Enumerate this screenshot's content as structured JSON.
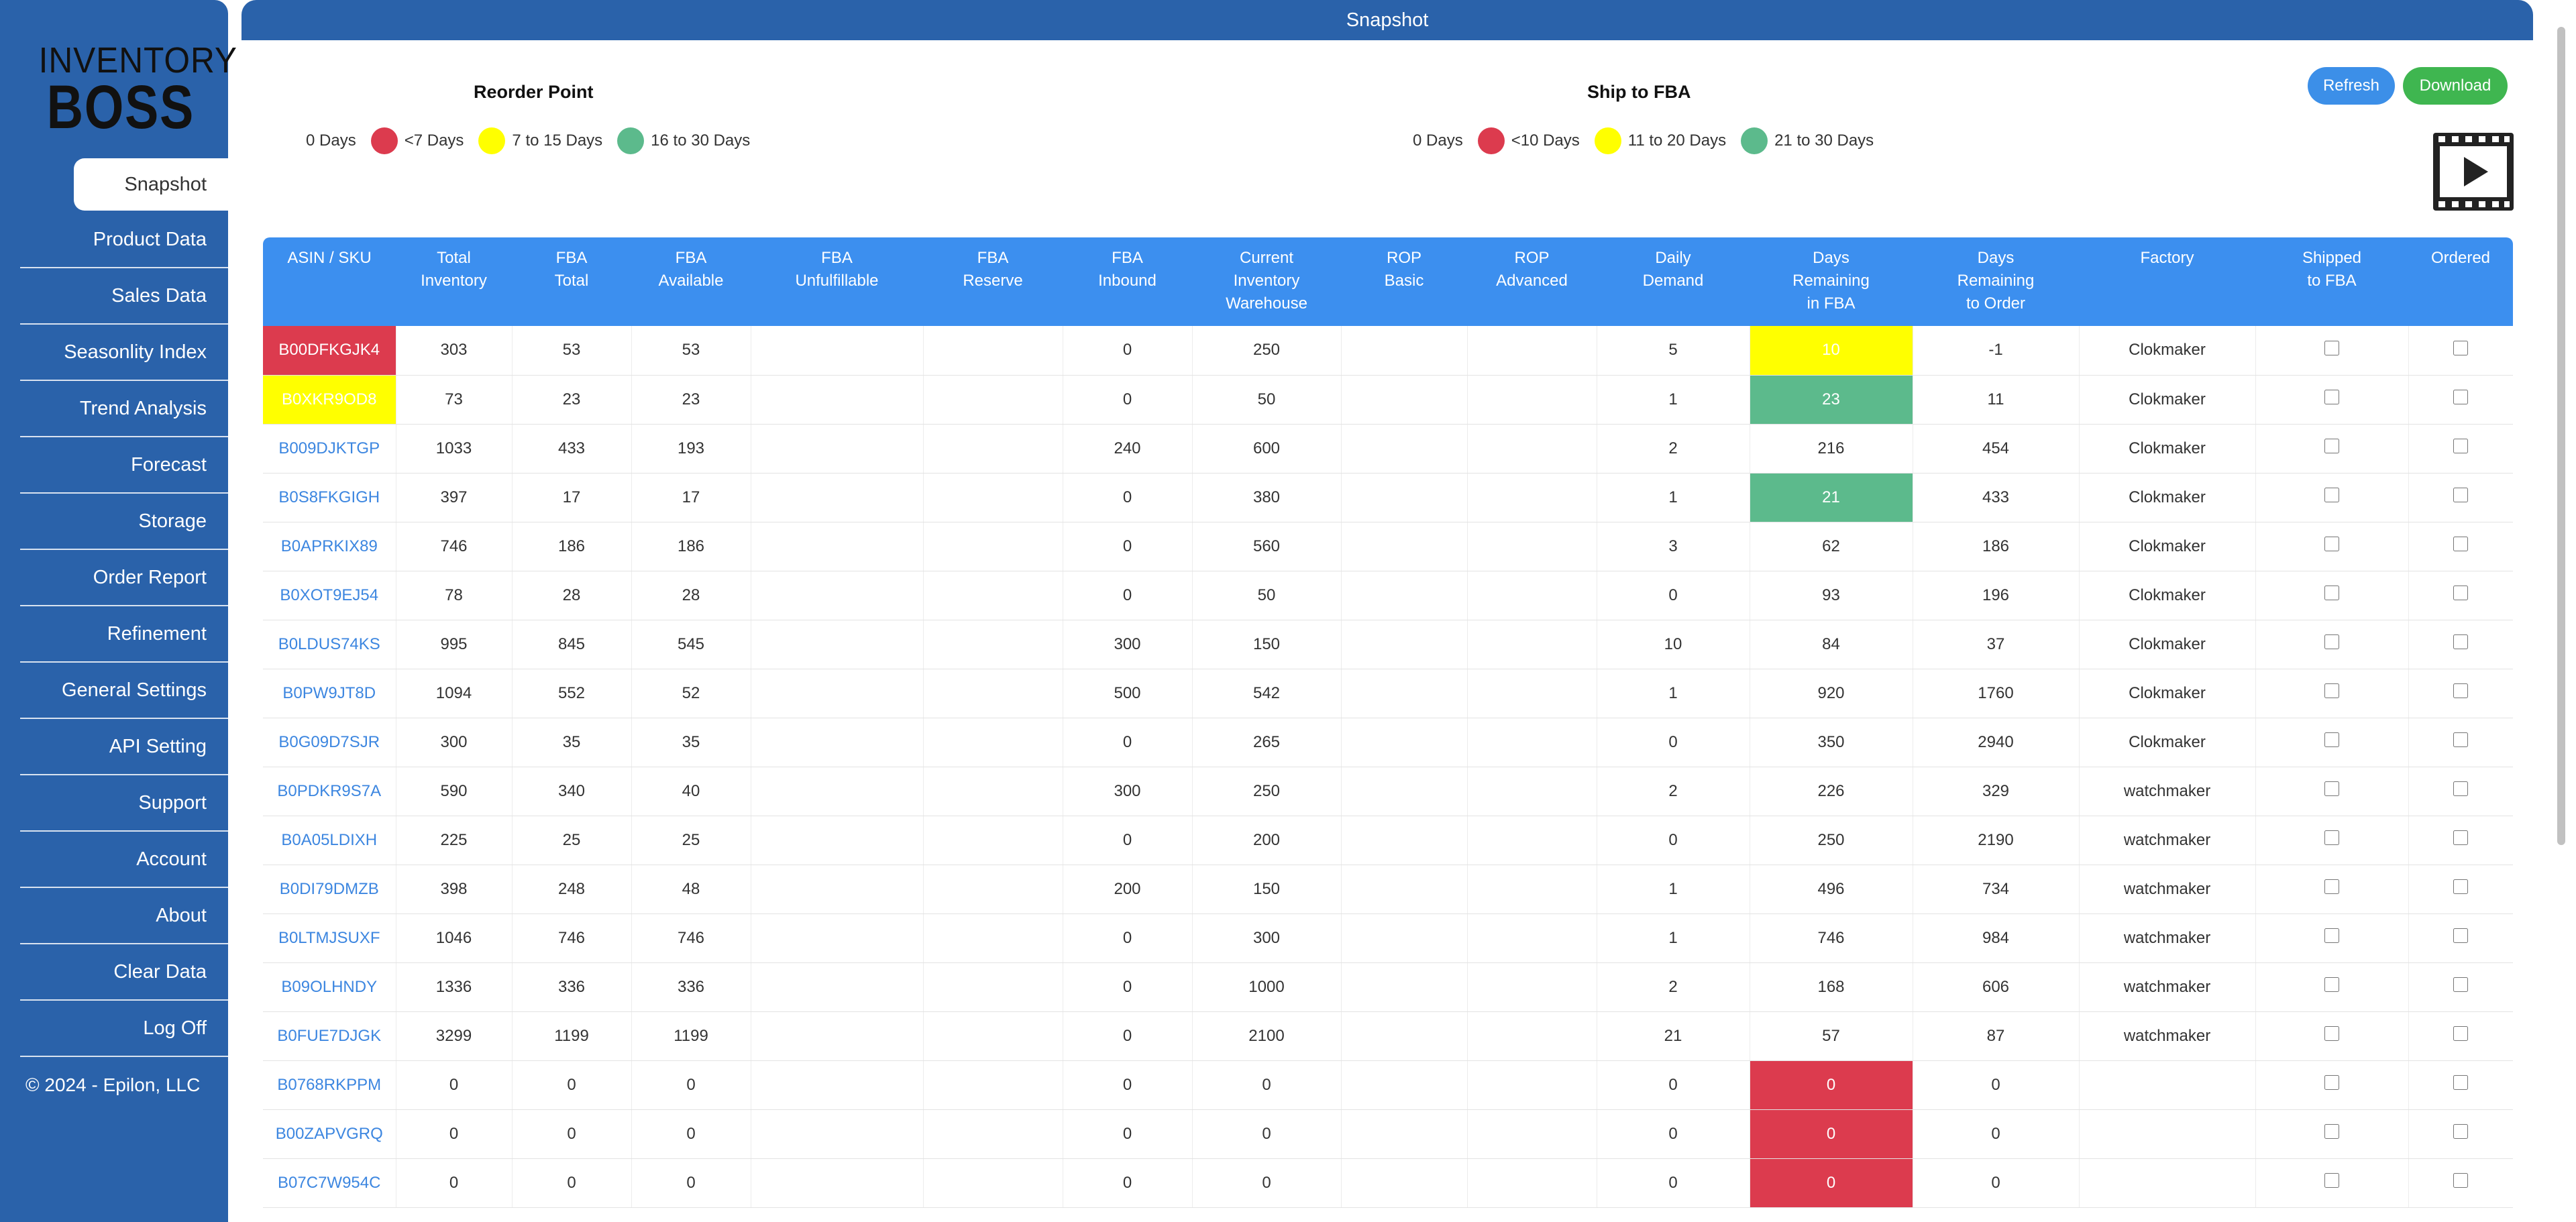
{
  "app": {
    "logo_top": "INVENTORY",
    "logo_bottom": "BOSS",
    "page_title": "Snapshot",
    "copyright": "© 2024 - Epilon, LLC"
  },
  "sidebar": {
    "items": [
      {
        "label": "Snapshot",
        "active": true
      },
      {
        "label": "Product Data"
      },
      {
        "label": "Sales Data"
      },
      {
        "label": "Seasonlity Index"
      },
      {
        "label": "Trend Analysis"
      },
      {
        "label": "Forecast"
      },
      {
        "label": "Storage"
      },
      {
        "label": "Order Report"
      },
      {
        "label": "Refinement"
      },
      {
        "label": "General Settings"
      },
      {
        "label": "API Setting"
      },
      {
        "label": "Support"
      },
      {
        "label": "Account"
      },
      {
        "label": "About"
      },
      {
        "label": "Clear Data"
      },
      {
        "label": "Log Off"
      }
    ]
  },
  "legends": {
    "reorder": {
      "title": "Reorder Point",
      "items": [
        {
          "label": "0 Days",
          "color": ""
        },
        {
          "label": "<7 Days",
          "color": "#dc3b4e"
        },
        {
          "label": "7 to 15 Days",
          "color": "#ffff00"
        },
        {
          "label": "16 to 30 Days",
          "color": "#5cba8c"
        }
      ]
    },
    "ship": {
      "title": "Ship to FBA",
      "items": [
        {
          "label": "0 Days",
          "color": ""
        },
        {
          "label": "<10 Days",
          "color": "#dc3b4e"
        },
        {
          "label": "11 to 20 Days",
          "color": "#ffff00"
        },
        {
          "label": "21 to 30 Days",
          "color": "#5cba8c"
        }
      ]
    }
  },
  "buttons": {
    "refresh": "Refresh",
    "download": "Download"
  },
  "colors": {
    "red": "#dc3b4e",
    "yellow": "#ffff00",
    "green": "#5cba8c",
    "header": "#3c8fef",
    "brand": "#2a62aa"
  },
  "table": {
    "columns": [
      [
        "ASIN / SKU"
      ],
      [
        "Total",
        "Inventory"
      ],
      [
        "FBA",
        "Total"
      ],
      [
        "FBA",
        "Available"
      ],
      [
        "FBA",
        "Unfulfillable"
      ],
      [
        "FBA",
        "Reserve"
      ],
      [
        "FBA",
        "Inbound"
      ],
      [
        "Current",
        "Inventory",
        "Warehouse"
      ],
      [
        "ROP",
        "Basic"
      ],
      [
        "ROP",
        "Advanced"
      ],
      [
        "Daily",
        "Demand"
      ],
      [
        "Days",
        "Remaining",
        "in FBA"
      ],
      [
        "Days",
        "Remaining",
        "to Order"
      ],
      [
        "Factory"
      ],
      [
        "Shipped",
        "to FBA"
      ],
      [
        "Ordered"
      ]
    ],
    "rows": [
      {
        "asin": "B00DFKGJK4",
        "total": "303",
        "fba_total": "53",
        "fba_avail": "53",
        "unfulfillable": "",
        "reserve": "",
        "inbound": "0",
        "warehouse": "250",
        "rop_basic": "",
        "rop_adv": "",
        "daily": "5",
        "days_fba": "10",
        "days_order": "-1",
        "factory": "Clokmaker",
        "asin_status": "red",
        "fba_status": "yellow"
      },
      {
        "asin": "B0XKR9OD8",
        "total": "73",
        "fba_total": "23",
        "fba_avail": "23",
        "unfulfillable": "",
        "reserve": "",
        "inbound": "0",
        "warehouse": "50",
        "rop_basic": "",
        "rop_adv": "",
        "daily": "1",
        "days_fba": "23",
        "days_order": "11",
        "factory": "Clokmaker",
        "asin_status": "yellow",
        "fba_status": "green"
      },
      {
        "asin": "B009DJKTGP",
        "total": "1033",
        "fba_total": "433",
        "fba_avail": "193",
        "unfulfillable": "",
        "reserve": "",
        "inbound": "240",
        "warehouse": "600",
        "rop_basic": "",
        "rop_adv": "",
        "daily": "2",
        "days_fba": "216",
        "days_order": "454",
        "factory": "Clokmaker",
        "asin_status": "",
        "fba_status": ""
      },
      {
        "asin": "B0S8FKGIGH",
        "total": "397",
        "fba_total": "17",
        "fba_avail": "17",
        "unfulfillable": "",
        "reserve": "",
        "inbound": "0",
        "warehouse": "380",
        "rop_basic": "",
        "rop_adv": "",
        "daily": "1",
        "days_fba": "21",
        "days_order": "433",
        "factory": "Clokmaker",
        "asin_status": "",
        "fba_status": "green"
      },
      {
        "asin": "B0APRKIX89",
        "total": "746",
        "fba_total": "186",
        "fba_avail": "186",
        "unfulfillable": "",
        "reserve": "",
        "inbound": "0",
        "warehouse": "560",
        "rop_basic": "",
        "rop_adv": "",
        "daily": "3",
        "days_fba": "62",
        "days_order": "186",
        "factory": "Clokmaker",
        "asin_status": "",
        "fba_status": ""
      },
      {
        "asin": "B0XOT9EJ54",
        "total": "78",
        "fba_total": "28",
        "fba_avail": "28",
        "unfulfillable": "",
        "reserve": "",
        "inbound": "0",
        "warehouse": "50",
        "rop_basic": "",
        "rop_adv": "",
        "daily": "0",
        "days_fba": "93",
        "days_order": "196",
        "factory": "Clokmaker",
        "asin_status": "",
        "fba_status": ""
      },
      {
        "asin": "B0LDUS74KS",
        "total": "995",
        "fba_total": "845",
        "fba_avail": "545",
        "unfulfillable": "",
        "reserve": "",
        "inbound": "300",
        "warehouse": "150",
        "rop_basic": "",
        "rop_adv": "",
        "daily": "10",
        "days_fba": "84",
        "days_order": "37",
        "factory": "Clokmaker",
        "asin_status": "",
        "fba_status": ""
      },
      {
        "asin": "B0PW9JT8D",
        "total": "1094",
        "fba_total": "552",
        "fba_avail": "52",
        "unfulfillable": "",
        "reserve": "",
        "inbound": "500",
        "warehouse": "542",
        "rop_basic": "",
        "rop_adv": "",
        "daily": "1",
        "days_fba": "920",
        "days_order": "1760",
        "factory": "Clokmaker",
        "asin_status": "",
        "fba_status": ""
      },
      {
        "asin": "B0G09D7SJR",
        "total": "300",
        "fba_total": "35",
        "fba_avail": "35",
        "unfulfillable": "",
        "reserve": "",
        "inbound": "0",
        "warehouse": "265",
        "rop_basic": "",
        "rop_adv": "",
        "daily": "0",
        "days_fba": "350",
        "days_order": "2940",
        "factory": "Clokmaker",
        "asin_status": "",
        "fba_status": ""
      },
      {
        "asin": "B0PDKR9S7A",
        "total": "590",
        "fba_total": "340",
        "fba_avail": "40",
        "unfulfillable": "",
        "reserve": "",
        "inbound": "300",
        "warehouse": "250",
        "rop_basic": "",
        "rop_adv": "",
        "daily": "2",
        "days_fba": "226",
        "days_order": "329",
        "factory": "watchmaker",
        "asin_status": "",
        "fba_status": ""
      },
      {
        "asin": "B0A05LDIXH",
        "total": "225",
        "fba_total": "25",
        "fba_avail": "25",
        "unfulfillable": "",
        "reserve": "",
        "inbound": "0",
        "warehouse": "200",
        "rop_basic": "",
        "rop_adv": "",
        "daily": "0",
        "days_fba": "250",
        "days_order": "2190",
        "factory": "watchmaker",
        "asin_status": "",
        "fba_status": ""
      },
      {
        "asin": "B0DI79DMZB",
        "total": "398",
        "fba_total": "248",
        "fba_avail": "48",
        "unfulfillable": "",
        "reserve": "",
        "inbound": "200",
        "warehouse": "150",
        "rop_basic": "",
        "rop_adv": "",
        "daily": "1",
        "days_fba": "496",
        "days_order": "734",
        "factory": "watchmaker",
        "asin_status": "",
        "fba_status": ""
      },
      {
        "asin": "B0LTMJSUXF",
        "total": "1046",
        "fba_total": "746",
        "fba_avail": "746",
        "unfulfillable": "",
        "reserve": "",
        "inbound": "0",
        "warehouse": "300",
        "rop_basic": "",
        "rop_adv": "",
        "daily": "1",
        "days_fba": "746",
        "days_order": "984",
        "factory": "watchmaker",
        "asin_status": "",
        "fba_status": ""
      },
      {
        "asin": "B09OLHNDY",
        "total": "1336",
        "fba_total": "336",
        "fba_avail": "336",
        "unfulfillable": "",
        "reserve": "",
        "inbound": "0",
        "warehouse": "1000",
        "rop_basic": "",
        "rop_adv": "",
        "daily": "2",
        "days_fba": "168",
        "days_order": "606",
        "factory": "watchmaker",
        "asin_status": "",
        "fba_status": ""
      },
      {
        "asin": "B0FUE7DJGK",
        "total": "3299",
        "fba_total": "1199",
        "fba_avail": "1199",
        "unfulfillable": "",
        "reserve": "",
        "inbound": "0",
        "warehouse": "2100",
        "rop_basic": "",
        "rop_adv": "",
        "daily": "21",
        "days_fba": "57",
        "days_order": "87",
        "factory": "watchmaker",
        "asin_status": "",
        "fba_status": ""
      },
      {
        "asin": "B0768RKPPM",
        "total": "0",
        "fba_total": "0",
        "fba_avail": "0",
        "unfulfillable": "",
        "reserve": "",
        "inbound": "0",
        "warehouse": "0",
        "rop_basic": "",
        "rop_adv": "",
        "daily": "0",
        "days_fba": "0",
        "days_order": "0",
        "factory": "",
        "asin_status": "",
        "fba_status": "red"
      },
      {
        "asin": "B00ZAPVGRQ",
        "total": "0",
        "fba_total": "0",
        "fba_avail": "0",
        "unfulfillable": "",
        "reserve": "",
        "inbound": "0",
        "warehouse": "0",
        "rop_basic": "",
        "rop_adv": "",
        "daily": "0",
        "days_fba": "0",
        "days_order": "0",
        "factory": "",
        "asin_status": "",
        "fba_status": "red"
      },
      {
        "asin": "B07C7W954C",
        "total": "0",
        "fba_total": "0",
        "fba_avail": "0",
        "unfulfillable": "",
        "reserve": "",
        "inbound": "0",
        "warehouse": "0",
        "rop_basic": "",
        "rop_adv": "",
        "daily": "0",
        "days_fba": "0",
        "days_order": "0",
        "factory": "",
        "asin_status": "",
        "fba_status": "red"
      }
    ]
  }
}
